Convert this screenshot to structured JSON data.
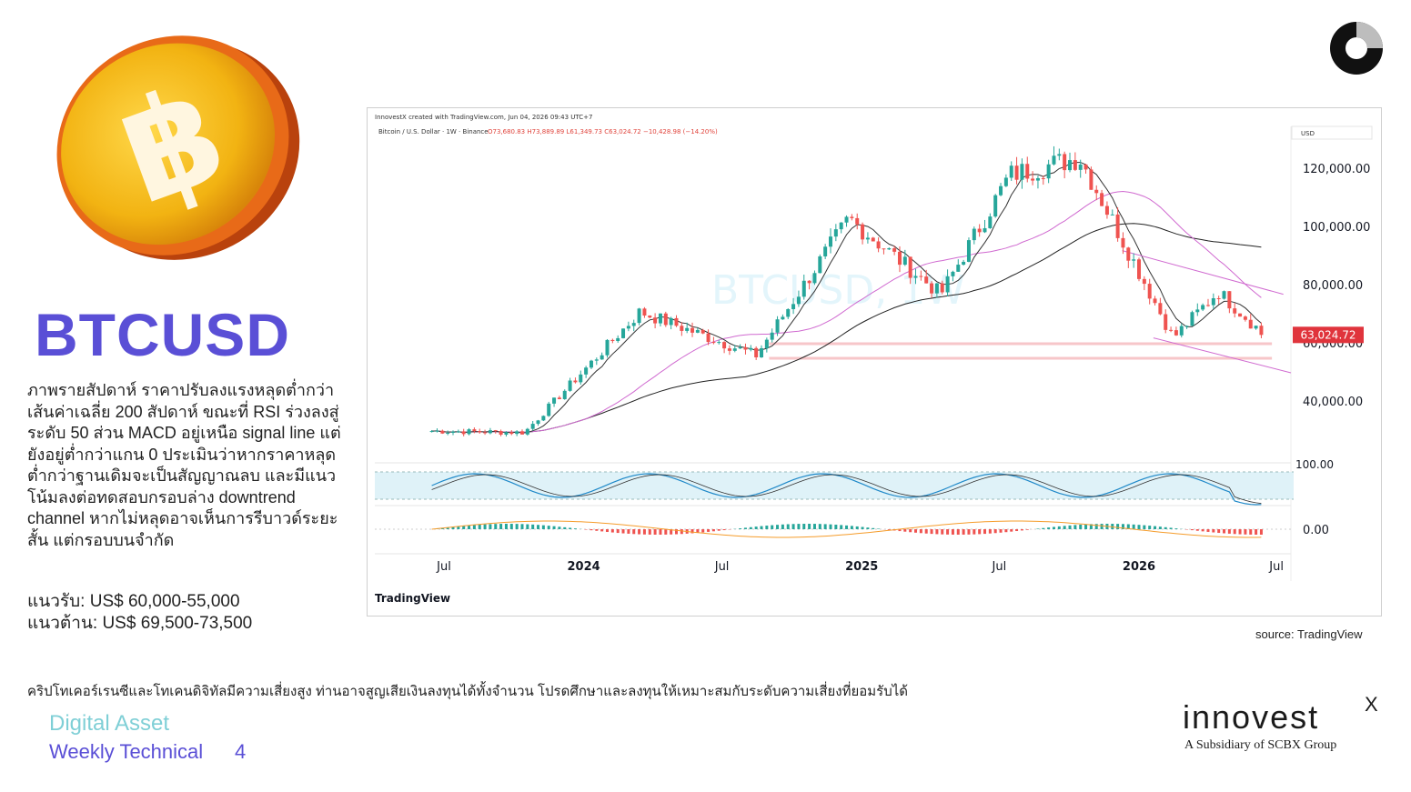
{
  "ticker": "BTCUSD",
  "analysis_text": "ภาพรายสัปดาห์ ราคาปรับลงแรงหลุดต่ำกว่าเส้นค่าเฉลี่ย 200 สัปดาห์ ขณะที่ RSI ร่วงลงสู่ระดับ 50 ส่วน MACD อยู่เหนือ signal line แต่ยังอยู่ต่ำกว่าแกน 0 ประเมินว่าหากราคาหลุดต่ำกว่าฐานเดิมจะเป็นสัญญาณลบ และมีแนวโน้มลงต่อทดสอบกรอบล่าง downtrend channel หากไม่หลุดอาจเห็นการรีบาวด์ระยะสั้น แต่กรอบบนจำกัด",
  "support": "แนวรับ: US$ 60,000-55,000",
  "resistance": "แนวต้าน: US$ 69,500-73,500",
  "source": "source: TradingView",
  "disclaimer": "คริปโทเคอร์เรนซีและโทเคนดิจิทัลมีความเสี่ยงสูง ท่านอาจสูญเสียเงินลงทุนได้ทั้งจำนวน โปรดศึกษาและลงทุนให้เหมาะสมกับระดับความเสี่ยงที่ยอมรับได้",
  "footer": {
    "title": "Digital Asset",
    "subtitle": "Weekly Technical",
    "page": "4"
  },
  "brand": {
    "name": "innovest",
    "mark": "X",
    "tagline": "A Subsidiary of SCBX Group"
  },
  "coin": {
    "glyph": "฿"
  },
  "chart_data": {
    "type": "candlestick",
    "header": "InnovestX created with TradingView.com, Jun 04, 2026 09:43 UTC+7",
    "symbol_line": "Bitcoin / U.S. Dollar · 1W · Binance",
    "ohlc_line": "O73,680.83 H73,889.89 L61,349.73 C63,024.72 −10,428.98 (−14.20%)",
    "watermark": "BTCUSD, 1W",
    "currency": "USD",
    "last_price": 63024.72,
    "last_price_label": "63,024.72",
    "y_ticks": [
      {
        "value": 120000,
        "label": "120,000.00"
      },
      {
        "value": 100000,
        "label": "100,000.00"
      },
      {
        "value": 80000,
        "label": "80,000.00"
      },
      {
        "value": 60000,
        "label": "60,000.00"
      },
      {
        "value": 40000,
        "label": "40,000.00"
      }
    ],
    "x_ticks": [
      {
        "label": "Jul",
        "bold": false
      },
      {
        "label": "2024",
        "bold": true
      },
      {
        "label": "Jul",
        "bold": false
      },
      {
        "label": "2025",
        "bold": true
      },
      {
        "label": "Jul",
        "bold": false
      },
      {
        "label": "2026",
        "bold": true
      },
      {
        "label": "Jul",
        "bold": false
      }
    ],
    "rsi_label": "100.00",
    "macd_label": "0.00",
    "key_points": [
      {
        "date": "2023-06",
        "close": 30000
      },
      {
        "date": "2023-10",
        "close": 29500
      },
      {
        "date": "2024-03",
        "close": 71000
      },
      {
        "date": "2024-08",
        "close": 56000
      },
      {
        "date": "2024-12",
        "close": 103000
      },
      {
        "date": "2025-04",
        "close": 77000
      },
      {
        "date": "2025-07",
        "close": 118000
      },
      {
        "date": "2025-10",
        "close": 124000
      },
      {
        "date": "2026-02",
        "close": 62000
      },
      {
        "date": "2026-04",
        "close": 78000
      },
      {
        "date": "2026-06",
        "close": 63024.72
      }
    ],
    "support_zones": [
      60000,
      55000
    ],
    "branding": "TradingView"
  }
}
